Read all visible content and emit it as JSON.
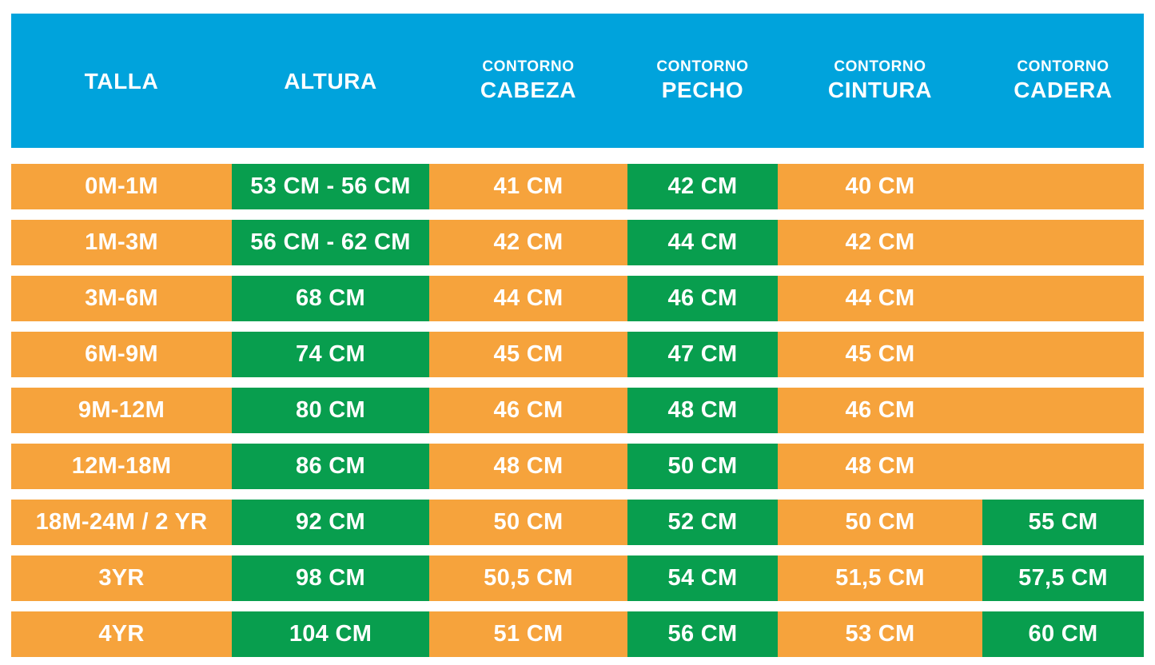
{
  "colors": {
    "header_bg": "#00A3DC",
    "orange": "#F6A33C",
    "green": "#089E4E",
    "text": "#FFFFFF",
    "page_bg": "#FFFFFF"
  },
  "header": {
    "columns": [
      {
        "top": "",
        "main": "TALLA"
      },
      {
        "top": "",
        "main": "ALTURA"
      },
      {
        "top": "CONTORNO",
        "main": "CABEZA"
      },
      {
        "top": "CONTORNO",
        "main": "PECHO"
      },
      {
        "top": "CONTORNO",
        "main": "CINTURA"
      },
      {
        "top": "CONTORNO",
        "main": "CADERA"
      }
    ]
  },
  "rows": [
    {
      "cells": [
        {
          "text": "0M-1M",
          "bg": "orange"
        },
        {
          "text": "53 CM - 56 CM",
          "bg": "green"
        },
        {
          "text": "41 CM",
          "bg": "orange"
        },
        {
          "text": "42 CM",
          "bg": "green"
        },
        {
          "text": "40 CM",
          "bg": "orange"
        },
        {
          "text": "",
          "bg": "orange"
        }
      ]
    },
    {
      "cells": [
        {
          "text": "1M-3M",
          "bg": "orange"
        },
        {
          "text": "56 CM - 62 CM",
          "bg": "green"
        },
        {
          "text": "42 CM",
          "bg": "orange"
        },
        {
          "text": "44 CM",
          "bg": "green"
        },
        {
          "text": "42 CM",
          "bg": "orange"
        },
        {
          "text": "",
          "bg": "orange"
        }
      ]
    },
    {
      "cells": [
        {
          "text": "3M-6M",
          "bg": "orange"
        },
        {
          "text": "68 CM",
          "bg": "green"
        },
        {
          "text": "44 CM",
          "bg": "orange"
        },
        {
          "text": "46 CM",
          "bg": "green"
        },
        {
          "text": "44 CM",
          "bg": "orange"
        },
        {
          "text": "",
          "bg": "orange"
        }
      ]
    },
    {
      "cells": [
        {
          "text": "6M-9M",
          "bg": "orange"
        },
        {
          "text": "74 CM",
          "bg": "green"
        },
        {
          "text": "45 CM",
          "bg": "orange"
        },
        {
          "text": "47 CM",
          "bg": "green"
        },
        {
          "text": "45 CM",
          "bg": "orange"
        },
        {
          "text": "",
          "bg": "orange"
        }
      ]
    },
    {
      "cells": [
        {
          "text": "9M-12M",
          "bg": "orange"
        },
        {
          "text": "80 CM",
          "bg": "green"
        },
        {
          "text": "46 CM",
          "bg": "orange"
        },
        {
          "text": "48 CM",
          "bg": "green"
        },
        {
          "text": "46 CM",
          "bg": "orange"
        },
        {
          "text": "",
          "bg": "orange"
        }
      ]
    },
    {
      "cells": [
        {
          "text": "12M-18M",
          "bg": "orange"
        },
        {
          "text": "86 CM",
          "bg": "green"
        },
        {
          "text": "48 CM",
          "bg": "orange"
        },
        {
          "text": "50 CM",
          "bg": "green"
        },
        {
          "text": "48 CM",
          "bg": "orange"
        },
        {
          "text": "",
          "bg": "orange"
        }
      ]
    },
    {
      "cells": [
        {
          "text": "18M-24M / 2 YR",
          "bg": "orange"
        },
        {
          "text": "92 CM",
          "bg": "green"
        },
        {
          "text": "50 CM",
          "bg": "orange"
        },
        {
          "text": "52 CM",
          "bg": "green"
        },
        {
          "text": "50 CM",
          "bg": "orange"
        },
        {
          "text": "55 CM",
          "bg": "green"
        }
      ]
    },
    {
      "cells": [
        {
          "text": "3YR",
          "bg": "orange"
        },
        {
          "text": "98 CM",
          "bg": "green"
        },
        {
          "text": "50,5 CM",
          "bg": "orange"
        },
        {
          "text": "54 CM",
          "bg": "green"
        },
        {
          "text": "51,5 CM",
          "bg": "orange"
        },
        {
          "text": "57,5 CM",
          "bg": "green"
        }
      ]
    },
    {
      "cells": [
        {
          "text": "4YR",
          "bg": "orange"
        },
        {
          "text": "104 CM",
          "bg": "green"
        },
        {
          "text": "51 CM",
          "bg": "orange"
        },
        {
          "text": "56 CM",
          "bg": "green"
        },
        {
          "text": "53 CM",
          "bg": "orange"
        },
        {
          "text": "60 CM",
          "bg": "green"
        }
      ]
    }
  ],
  "chart_data": {
    "type": "table",
    "title": "Tabla de tallas infantil (medidas en CM)",
    "columns": [
      "TALLA",
      "ALTURA",
      "CONTORNO CABEZA",
      "CONTORNO PECHO",
      "CONTORNO CINTURA",
      "CONTORNO CADERA"
    ],
    "rows": [
      [
        "0M-1M",
        "53 CM - 56 CM",
        "41 CM",
        "42 CM",
        "40 CM",
        ""
      ],
      [
        "1M-3M",
        "56 CM - 62 CM",
        "42 CM",
        "44 CM",
        "42 CM",
        ""
      ],
      [
        "3M-6M",
        "68 CM",
        "44 CM",
        "46 CM",
        "44 CM",
        ""
      ],
      [
        "6M-9M",
        "74 CM",
        "45 CM",
        "47 CM",
        "45 CM",
        ""
      ],
      [
        "9M-12M",
        "80 CM",
        "46 CM",
        "48 CM",
        "46 CM",
        ""
      ],
      [
        "12M-18M",
        "86 CM",
        "48 CM",
        "50 CM",
        "48 CM",
        ""
      ],
      [
        "18M-24M / 2 YR",
        "92 CM",
        "50 CM",
        "52 CM",
        "50 CM",
        "55 CM"
      ],
      [
        "3YR",
        "98 CM",
        "50,5 CM",
        "54 CM",
        "51,5 CM",
        "57,5 CM"
      ],
      [
        "4YR",
        "104 CM",
        "51 CM",
        "56 CM",
        "53 CM",
        "60 CM"
      ]
    ],
    "legend": {
      "green_cells": "ALTURA y CONTORNO PECHO en todas las filas; CONTORNO CADERA en las filas 18M-24M / 2 YR, 3YR y 4YR",
      "orange_cells": "resto de celdas"
    },
    "layout": "header row blue, data rows alternating orange/green cells, white gaps between rows"
  }
}
